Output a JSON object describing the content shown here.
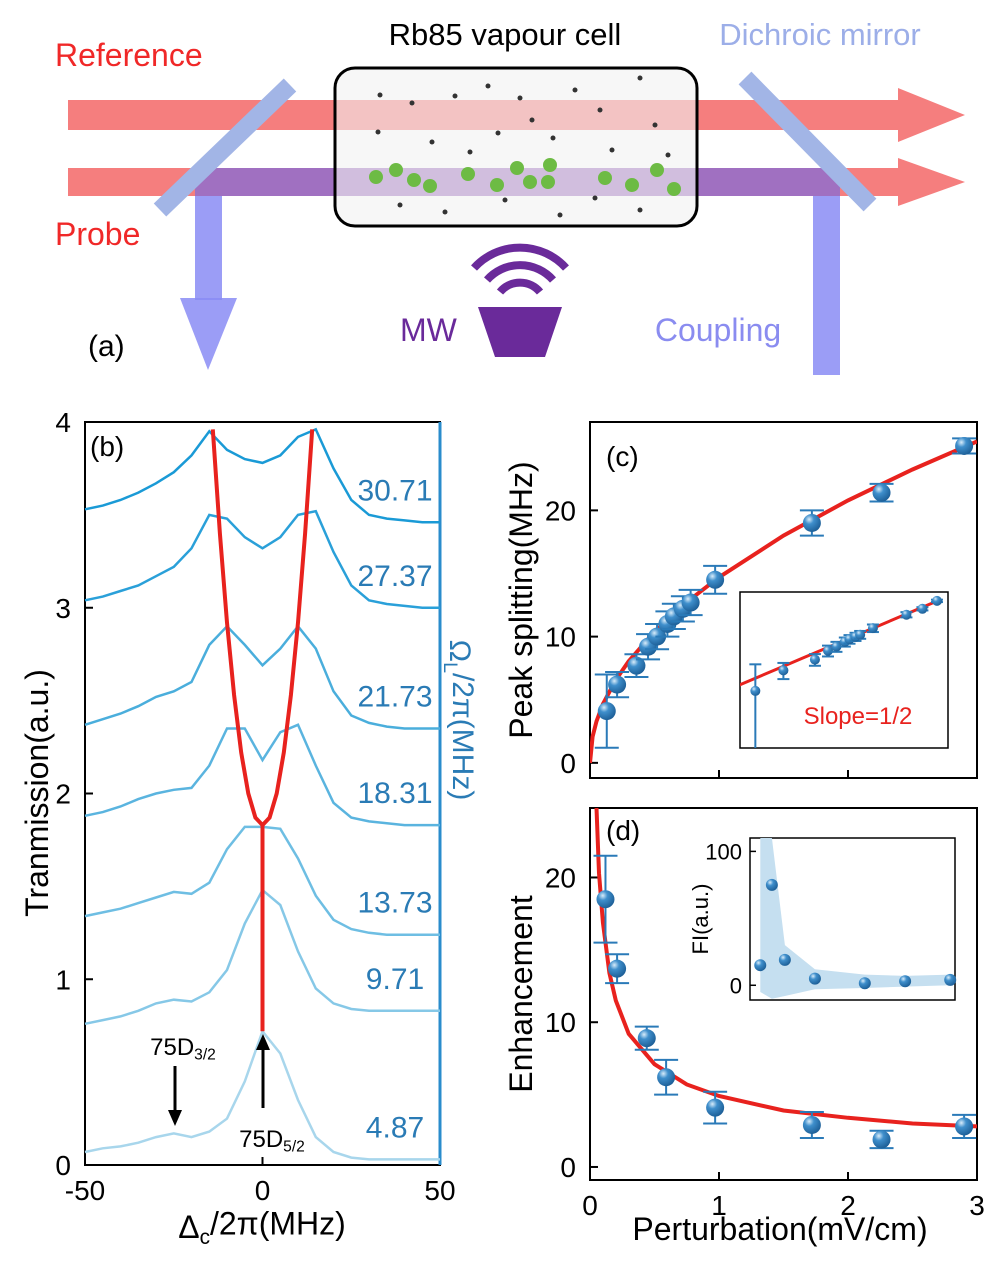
{
  "diagram": {
    "label": "(a)",
    "cell": "Rb85 vapour cell",
    "mirror": "Dichroic mirror",
    "reference": "Reference",
    "probe": "Probe",
    "mw": "MW",
    "coupling": "Coupling"
  },
  "chart_data": [
    {
      "type": "line",
      "panel_label": "(b)",
      "x_label": {
        "main": "Δ",
        "sub": "c",
        "rest": "/2π(MHz)"
      },
      "y_label": "Tranmission(a.u.)",
      "y2_label": {
        "main": "Ω",
        "sub": "L",
        "rest": "/2π(MHz)"
      },
      "xlim": [
        -50,
        50
      ],
      "xticks": [
        -50,
        0,
        50
      ],
      "ylim": [
        0,
        4
      ],
      "yticks": [
        0,
        1,
        2,
        3,
        4
      ],
      "x": [
        -50,
        -45,
        -40,
        -35,
        -30,
        -25,
        -20,
        -15,
        -10,
        -5,
        0,
        5,
        10,
        15,
        20,
        25,
        30,
        35,
        40,
        45,
        50
      ],
      "series": [
        {
          "name": "4.87",
          "color": "#a8d6ec",
          "values": [
            0.07,
            0.09,
            0.1,
            0.12,
            0.15,
            0.17,
            0.15,
            0.18,
            0.25,
            0.45,
            0.72,
            0.6,
            0.35,
            0.15,
            0.07,
            0.04,
            0.03,
            0.03,
            0.03,
            0.03,
            0.03
          ]
        },
        {
          "name": "9.71",
          "color": "#86c8e7",
          "values": [
            0.76,
            0.78,
            0.8,
            0.83,
            0.87,
            0.89,
            0.88,
            0.93,
            1.05,
            1.3,
            1.48,
            1.4,
            1.15,
            0.95,
            0.87,
            0.84,
            0.83,
            0.83,
            0.83,
            0.83,
            0.83
          ]
        },
        {
          "name": "13.73",
          "color": "#6ebee3",
          "values": [
            1.34,
            1.36,
            1.38,
            1.41,
            1.44,
            1.47,
            1.46,
            1.52,
            1.7,
            1.82,
            1.82,
            1.81,
            1.65,
            1.45,
            1.32,
            1.27,
            1.25,
            1.24,
            1.24,
            1.24,
            1.24
          ]
        },
        {
          "name": "18.31",
          "color": "#5ab4df",
          "values": [
            1.88,
            1.9,
            1.93,
            1.97,
            2.0,
            2.02,
            2.03,
            2.15,
            2.35,
            2.35,
            2.18,
            2.33,
            2.37,
            2.15,
            1.95,
            1.87,
            1.85,
            1.84,
            1.83,
            1.83,
            1.83
          ]
        },
        {
          "name": "21.73",
          "color": "#4aaedc",
          "values": [
            2.37,
            2.4,
            2.43,
            2.47,
            2.52,
            2.55,
            2.6,
            2.8,
            2.9,
            2.8,
            2.69,
            2.78,
            2.9,
            2.78,
            2.55,
            2.42,
            2.38,
            2.36,
            2.35,
            2.35,
            2.35
          ]
        },
        {
          "name": "27.37",
          "color": "#2aa0d9",
          "values": [
            3.04,
            3.06,
            3.09,
            3.12,
            3.17,
            3.22,
            3.32,
            3.5,
            3.48,
            3.38,
            3.32,
            3.38,
            3.5,
            3.52,
            3.3,
            3.12,
            3.04,
            3.02,
            3.01,
            3.0,
            3.0
          ]
        },
        {
          "name": "30.71",
          "color": "#1a9ad6",
          "values": [
            3.53,
            3.55,
            3.58,
            3.62,
            3.67,
            3.73,
            3.82,
            3.95,
            3.85,
            3.8,
            3.78,
            3.82,
            3.92,
            3.96,
            3.75,
            3.58,
            3.5,
            3.48,
            3.47,
            3.46,
            3.46
          ]
        }
      ],
      "fit": [
        {
          "color": "#e8221e",
          "x": [
            -14,
            -12,
            -10,
            -8,
            -6,
            -4,
            -2,
            0,
            2,
            4,
            6,
            8,
            10,
            12,
            14
          ],
          "values": [
            3.96,
            3.4,
            2.92,
            2.53,
            2.22,
            2.0,
            1.87,
            1.83,
            1.87,
            2.0,
            2.22,
            2.53,
            2.92,
            3.4,
            3.96
          ]
        },
        {
          "color": "#e8221e",
          "x": [
            0,
            0
          ],
          "values": [
            1.83,
            0.72
          ]
        }
      ],
      "annotations": [
        {
          "text": "75D",
          "sub": "3/2"
        },
        {
          "text": "75D",
          "sub": "5/2"
        }
      ]
    },
    {
      "type": "scatter",
      "panel_label": "(c)",
      "y_label": "Peak splitting(MHz)",
      "xlim": [
        0,
        3
      ],
      "xticks": [
        0,
        1,
        2,
        3
      ],
      "ylim": [
        -1.2,
        27
      ],
      "yticks": [
        0,
        10,
        20
      ],
      "series": [
        {
          "color": "#2a7ab8",
          "x": [
            0.13,
            0.21,
            0.36,
            0.45,
            0.52,
            0.6,
            0.65,
            0.72,
            0.78,
            0.97,
            1.72,
            2.26,
            2.9
          ],
          "values": [
            4.1,
            6.2,
            7.7,
            9.2,
            10.0,
            11.0,
            11.6,
            12.2,
            12.7,
            14.5,
            19.0,
            21.4,
            25.1
          ],
          "errors": [
            2.9,
            1.0,
            0.9,
            1.0,
            1.0,
            1.0,
            1.0,
            1.0,
            1.0,
            1.1,
            1.0,
            0.7,
            0.6
          ]
        }
      ],
      "fit": {
        "color": "#e8221e",
        "x": [
          0,
          0.02,
          0.05,
          0.1,
          0.2,
          0.3,
          0.5,
          0.75,
          1,
          1.5,
          2,
          2.5,
          3
        ],
        "values": [
          0,
          2.08,
          3.29,
          4.65,
          6.57,
          8.05,
          10.39,
          12.73,
          14.7,
          18.0,
          20.79,
          23.24,
          25.46
        ]
      },
      "inset": {
        "log": true,
        "xlim": [
          0.1,
          3.5
        ],
        "ylim": [
          1.3,
          30
        ],
        "annotation": "Slope=1/2",
        "annotation_color": "#e8221e"
      }
    },
    {
      "type": "scatter",
      "panel_label": "(d)",
      "y_label": "Enhancement",
      "x_label": "Perturbation(mV/cm)",
      "xlim": [
        0,
        3
      ],
      "xticks": [
        0,
        1,
        2,
        3
      ],
      "ylim": [
        -0.9,
        24.8
      ],
      "yticks": [
        0,
        10,
        20
      ],
      "series": [
        {
          "color": "#2a7ab8",
          "x": [
            0.12,
            0.21,
            0.44,
            0.59,
            0.97,
            1.72,
            2.26,
            2.9
          ],
          "values": [
            18.5,
            13.7,
            8.9,
            6.2,
            4.1,
            2.9,
            1.9,
            2.8
          ],
          "errors": [
            3.0,
            1.0,
            0.8,
            1.2,
            1.1,
            0.9,
            0.6,
            0.8
          ]
        }
      ],
      "fit": {
        "color": "#e8221e",
        "x": [
          0.05,
          0.07,
          0.1,
          0.15,
          0.2,
          0.3,
          0.5,
          0.75,
          1,
          1.5,
          2,
          2.5,
          3
        ],
        "values": [
          24.8,
          20.3,
          16.9,
          13.4,
          11.5,
          9.2,
          7.1,
          5.7,
          4.9,
          3.9,
          3.4,
          3.0,
          2.8
        ]
      },
      "inset": {
        "y_label": "FI(a.u.)",
        "xlim": [
          0,
          3
        ],
        "ylim": [
          -11,
          110
        ],
        "yticks": [
          0,
          100
        ],
        "x": [
          0.15,
          0.32,
          0.51,
          0.95,
          1.68,
          2.27,
          2.93
        ],
        "values": [
          15,
          75,
          19,
          5,
          1.5,
          3,
          4
        ],
        "band_upper": [
          110,
          110,
          30,
          12,
          8,
          7,
          8
        ],
        "band_lower": [
          -5,
          -10,
          -8,
          -3,
          -2,
          -1,
          0
        ],
        "band_color": "#c5dff0"
      }
    }
  ]
}
